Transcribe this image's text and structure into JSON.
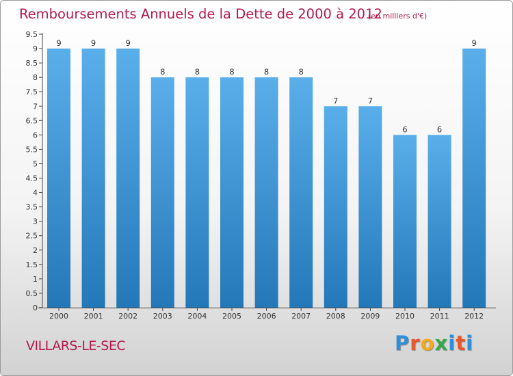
{
  "colors": {
    "accent": "#b4184e",
    "bar_top": "#5aaeea",
    "bar_bottom": "#2478b8",
    "logo_letters": [
      "#2f8fd8",
      "#e8562a",
      "#f2a91b",
      "#3aa84a",
      "#2f8fd8",
      "#e8562a"
    ]
  },
  "header": {
    "title": "Remboursements Annuels de la Dette de 2000 à 2012",
    "subtitle": "(en milliers d'€)"
  },
  "footer": {
    "commune": "VILLARS-LE-SEC",
    "logo": "Proxiti"
  },
  "chart_data": {
    "type": "bar",
    "title": "Remboursements Annuels de la Dette de 2000 à 2012",
    "unit": "(en milliers d'€)",
    "xlabel": "",
    "ylabel": "",
    "categories": [
      "2000",
      "2001",
      "2002",
      "2003",
      "2004",
      "2005",
      "2006",
      "2007",
      "2008",
      "2009",
      "2010",
      "2011",
      "2012"
    ],
    "values": [
      9,
      9,
      9,
      8,
      8,
      8,
      8,
      8,
      7,
      7,
      6,
      6,
      9
    ],
    "value_labels": [
      "9",
      "9",
      "9",
      "8",
      "8",
      "8",
      "8",
      "8",
      "7",
      "7",
      "6",
      "6",
      "9"
    ],
    "ylim": [
      0,
      9.5
    ],
    "yticks": [
      "0",
      "0.5",
      "1",
      "1.5",
      "2",
      "2.5",
      "3",
      "3.5",
      "4",
      "4.5",
      "5",
      "5.5",
      "6",
      "6.5",
      "7",
      "7.5",
      "8",
      "8.5",
      "9",
      "9.5"
    ],
    "grid": false,
    "legend": "none"
  }
}
